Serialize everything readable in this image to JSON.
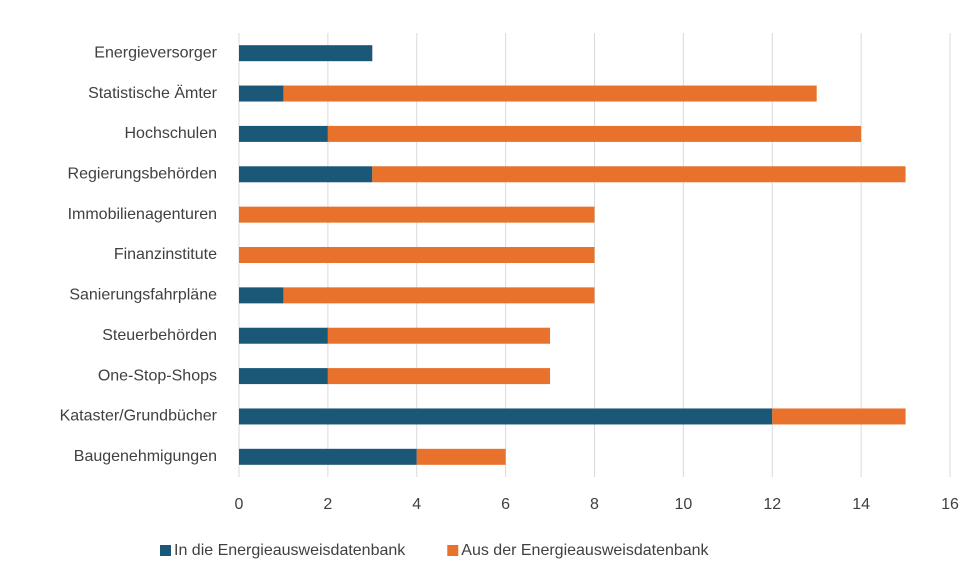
{
  "chart_data": {
    "type": "bar",
    "orientation": "horizontal",
    "stacked": true,
    "categories": [
      "Energieversorger",
      "Statistische Ämter",
      "Hochschulen",
      "Regierungsbehörden",
      "Immobilienagenturen",
      "Finanzinstitute",
      "Sanierungsfahrpläne",
      "Steuerbehörden",
      "One-Stop-Shops",
      "Kataster/Grundbücher",
      "Baugenehmigungen"
    ],
    "series": [
      {
        "name": "In die Energieausweisdatenbank",
        "color": "#1b5878",
        "values": [
          3,
          1,
          2,
          3,
          0,
          0,
          1,
          2,
          2,
          12,
          4
        ]
      },
      {
        "name": "Aus der Energieausweisdatenbank",
        "color": "#e8722c",
        "values": [
          0,
          12,
          12,
          12,
          8,
          8,
          7,
          5,
          5,
          3,
          2
        ]
      }
    ],
    "xlim": [
      0,
      16
    ],
    "xticks": [
      0,
      2,
      4,
      6,
      8,
      10,
      12,
      14,
      16
    ],
    "grid": true,
    "legend": "bottom"
  }
}
